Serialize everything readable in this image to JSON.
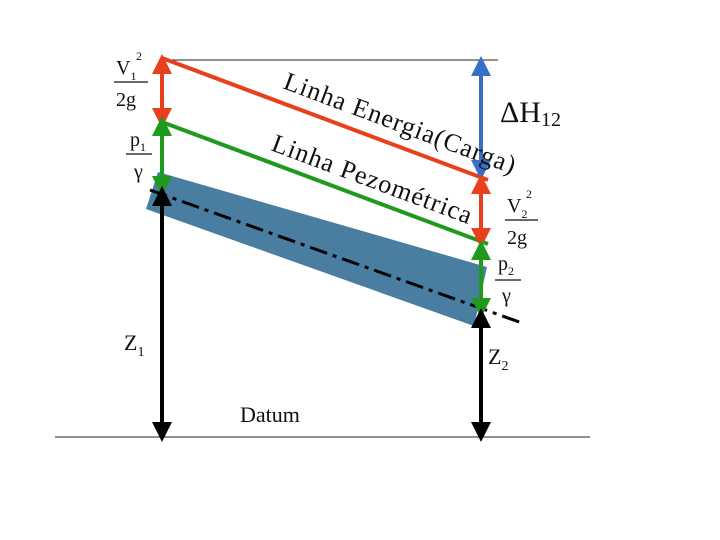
{
  "diagram": {
    "energy_line_label": "Linha Energia(Carga)",
    "piezometric_line_label": "Linha Pezométrica",
    "datum_label": "Datum",
    "delta_h": {
      "symbol": "ΔH",
      "sub": "12"
    },
    "z1": {
      "symbol": "Z",
      "sub": "1"
    },
    "z2": {
      "symbol": "Z",
      "sub": "2"
    },
    "velocity_head_1": {
      "num": "V",
      "num_sub": "1",
      "num_sup": "2",
      "den": "2g"
    },
    "pressure_head_1": {
      "num": "p",
      "num_sub": "1",
      "den": "γ"
    },
    "velocity_head_2": {
      "num": "V",
      "num_sub": "2",
      "num_sup": "2",
      "den": "2g"
    },
    "pressure_head_2": {
      "num": "p",
      "num_sub": "2",
      "den": "γ"
    }
  },
  "colors": {
    "energy_line": "#e8401c",
    "piezometric_line": "#1e9b1e",
    "pipe": "#4a7ea0",
    "delta_h_arrow": "#3a6fc8",
    "elevation_arrow": "#000000",
    "center_line": "#000000"
  }
}
